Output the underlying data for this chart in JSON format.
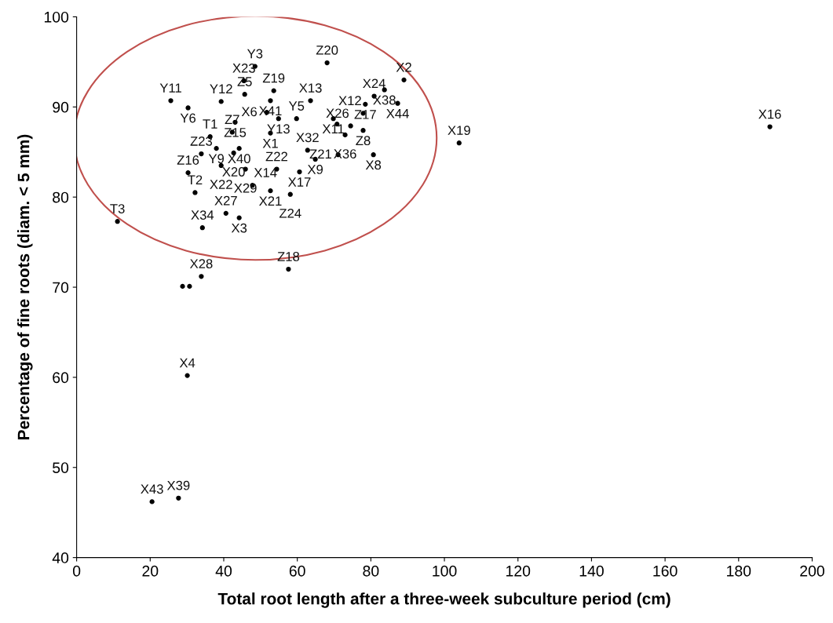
{
  "chart_data": {
    "type": "scatter",
    "xlabel": "Total root length after a three-week subculture period (cm)",
    "ylabel": "Percentage of fine roots (diam. < 5 mm)",
    "x": [
      48.5,
      45.5,
      45.7,
      53.6,
      52.7,
      51.7,
      25.6,
      30.3,
      39.3,
      43.1,
      54.9,
      59.8,
      63.6,
      68.1,
      52.7,
      42.3,
      36.3,
      38.0,
      44.2,
      42.7,
      33.9,
      30.3,
      39.3,
      45.9,
      47.8,
      52.7,
      54.4,
      60.6,
      58.1,
      32.2,
      40.6,
      44.2,
      34.2,
      89.0,
      83.7,
      80.9,
      87.3,
      78.5,
      77.9,
      69.8,
      74.5,
      77.9,
      73.0,
      70.8,
      62.8,
      64.9,
      71.1,
      80.7,
      11.1,
      33.9,
      28.8,
      30.7,
      57.6,
      30.1,
      104.0,
      188.5,
      20.5,
      27.7
    ],
    "values": [
      94.5,
      92.9,
      91.4,
      91.8,
      90.7,
      89.4,
      90.7,
      89.9,
      90.6,
      88.3,
      88.7,
      88.7,
      90.7,
      94.9,
      87.1,
      87.2,
      86.7,
      85.4,
      85.4,
      84.9,
      84.8,
      82.7,
      83.5,
      83.1,
      81.3,
      80.7,
      83.1,
      82.8,
      80.3,
      80.5,
      78.2,
      77.7,
      76.6,
      93.0,
      91.9,
      91.2,
      90.4,
      90.3,
      89.3,
      88.7,
      87.9,
      87.4,
      86.9,
      88.1,
      85.2,
      84.2,
      84.7,
      84.7,
      77.3,
      71.2,
      70.1,
      70.1,
      72.0,
      60.2,
      86.0,
      87.8,
      46.2,
      46.6
    ],
    "color": "#000000",
    "marker": "circle",
    "grid": false,
    "legend": false,
    "xlim": [
      0,
      200
    ],
    "xticks": [
      0,
      20,
      40,
      60,
      80,
      100,
      120,
      140,
      160,
      180,
      200
    ],
    "ylim": [
      40,
      100
    ],
    "yticks": [
      40,
      50,
      60,
      70,
      80,
      90,
      100
    ],
    "annotations": [
      {
        "text": "Y3",
        "x": 48.5,
        "y": 94.5
      },
      {
        "text": "X23",
        "x": 45.5,
        "y": 92.9
      },
      {
        "text": "Z5",
        "x": 45.7,
        "y": 91.4
      },
      {
        "text": "Z19",
        "x": 53.6,
        "y": 91.8
      },
      {
        "text": "X41",
        "x": 52.7,
        "y": 90.7
      },
      {
        "text": "X6",
        "x": 51.7,
        "y": 89.4
      },
      {
        "text": "Y11",
        "x": 25.6,
        "y": 90.7
      },
      {
        "text": "Y6",
        "x": 30.3,
        "y": 89.9
      },
      {
        "text": "Y12",
        "x": 39.3,
        "y": 90.6
      },
      {
        "text": "Z15",
        "x": 43.1,
        "y": 88.3
      },
      {
        "text": "Y13",
        "x": 54.9,
        "y": 88.7
      },
      {
        "text": "Y5",
        "x": 59.8,
        "y": 88.7
      },
      {
        "text": "X13",
        "x": 63.6,
        "y": 90.7
      },
      {
        "text": "Z20",
        "x": 68.1,
        "y": 94.9
      },
      {
        "text": "X1",
        "x": 52.7,
        "y": 87.1
      },
      {
        "text": "Z7",
        "x": 42.3,
        "y": 87.2
      },
      {
        "text": "T1",
        "x": 36.3,
        "y": 86.7
      },
      {
        "text": "Y9",
        "x": 38.0,
        "y": 85.4
      },
      {
        "text": "X40",
        "x": 44.2,
        "y": 85.4
      },
      {
        "text": "X20",
        "x": 42.7,
        "y": 84.9
      },
      {
        "text": "Z23",
        "x": 33.9,
        "y": 84.8
      },
      {
        "text": "Z16",
        "x": 30.3,
        "y": 82.7
      },
      {
        "text": "X22",
        "x": 39.3,
        "y": 83.5
      },
      {
        "text": "X29",
        "x": 45.9,
        "y": 83.1
      },
      {
        "text": "X14",
        "x": 47.8,
        "y": 81.3
      },
      {
        "text": "X21",
        "x": 52.7,
        "y": 80.7
      },
      {
        "text": "Z22",
        "x": 54.4,
        "y": 83.1
      },
      {
        "text": "X17",
        "x": 60.6,
        "y": 82.8
      },
      {
        "text": "Z24",
        "x": 58.1,
        "y": 80.3
      },
      {
        "text": "T2",
        "x": 32.2,
        "y": 80.5
      },
      {
        "text": "X27",
        "x": 40.6,
        "y": 78.2
      },
      {
        "text": "X3",
        "x": 44.2,
        "y": 77.7
      },
      {
        "text": "X34",
        "x": 34.2,
        "y": 76.6
      },
      {
        "text": "X2",
        "x": 89.0,
        "y": 93.0
      },
      {
        "text": "X38",
        "x": 83.7,
        "y": 91.9
      },
      {
        "text": "X24",
        "x": 80.9,
        "y": 91.2
      },
      {
        "text": "X44",
        "x": 87.3,
        "y": 90.4
      },
      {
        "text": "Z17",
        "x": 78.5,
        "y": 90.3
      },
      {
        "text": "X12",
        "x": 77.9,
        "y": 89.3
      },
      {
        "text": "X11",
        "x": 69.8,
        "y": 88.7
      },
      {
        "text": "X26",
        "x": 74.5,
        "y": 87.9
      },
      {
        "text": "Z8",
        "x": 77.9,
        "y": 87.4
      },
      {
        "text": "X36",
        "x": 73.0,
        "y": 86.9
      },
      {
        "text": "X32",
        "x": 62.8,
        "y": 85.2
      },
      {
        "text": "X9",
        "x": 64.9,
        "y": 84.2
      },
      {
        "text": "Z21",
        "x": 71.1,
        "y": 84.7
      },
      {
        "text": "X8",
        "x": 80.7,
        "y": 84.7
      },
      {
        "text": "T3",
        "x": 11.1,
        "y": 77.3
      },
      {
        "text": "X28",
        "x": 33.9,
        "y": 71.2
      },
      {
        "text": "Z18",
        "x": 57.6,
        "y": 72.0
      },
      {
        "text": "X4",
        "x": 30.1,
        "y": 60.2
      },
      {
        "text": "X19",
        "x": 104.0,
        "y": 86.0
      },
      {
        "text": "X16",
        "x": 188.5,
        "y": 87.8
      },
      {
        "text": "X43",
        "x": 20.5,
        "y": 46.2
      },
      {
        "text": "X39",
        "x": 27.7,
        "y": 46.6
      }
    ]
  }
}
